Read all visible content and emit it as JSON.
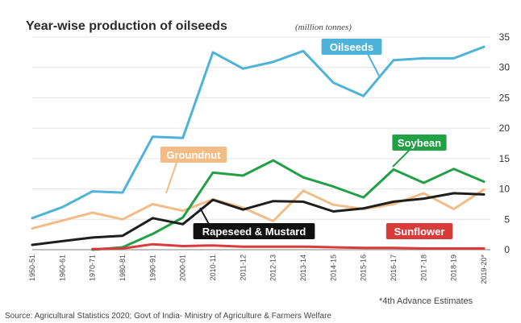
{
  "chart_data": {
    "type": "line",
    "title": "Year-wise production of oilseeds",
    "unit": "(million tonnes)",
    "categories": [
      "1950-51",
      "1960-61",
      "1970-71",
      "1980-81",
      "1990-91",
      "2000-01",
      "2010-11",
      "2011-12",
      "2012-13",
      "2013-14",
      "2014-15",
      "2015-16",
      "2016-17",
      "2017-18",
      "2018-19",
      "2019-20*"
    ],
    "ylim": [
      0,
      35
    ],
    "yticks": [
      0,
      5,
      10,
      15,
      20,
      25,
      30,
      35
    ],
    "grid": true,
    "series": [
      {
        "name": "Oilseeds",
        "color": "#4db3d9",
        "label_fill": "#4db3d9",
        "values": [
          5.2,
          7.0,
          9.6,
          9.4,
          18.6,
          18.4,
          32.5,
          29.8,
          30.9,
          32.7,
          27.5,
          25.3,
          31.2,
          31.5,
          31.5,
          33.4
        ]
      },
      {
        "name": "Groundnut",
        "color": "#f2bc86",
        "label_fill": "#f2bc86",
        "values": [
          3.5,
          4.8,
          6.1,
          5.0,
          7.5,
          6.4,
          8.3,
          6.9,
          4.7,
          9.7,
          7.4,
          6.7,
          7.5,
          9.3,
          6.7,
          9.9
        ]
      },
      {
        "name": "Soybean",
        "color": "#22a045",
        "label_fill": "#22a045",
        "values": [
          null,
          null,
          0.0,
          0.4,
          2.6,
          5.3,
          12.7,
          12.2,
          14.7,
          11.9,
          10.4,
          8.6,
          13.2,
          11.0,
          13.3,
          11.2
        ]
      },
      {
        "name": "Rapeseed & Mustard",
        "color": "#1e1e1e",
        "label_fill": "#111111",
        "values": [
          0.8,
          1.4,
          2.0,
          2.3,
          5.2,
          4.2,
          8.2,
          6.6,
          8.0,
          7.9,
          6.3,
          6.8,
          7.9,
          8.4,
          9.3,
          9.1
        ]
      },
      {
        "name": "Sunflower",
        "color": "#d93b3b",
        "label_fill": "#d93b3b",
        "values": [
          null,
          null,
          0.1,
          0.2,
          0.9,
          0.6,
          0.7,
          0.5,
          0.5,
          0.5,
          0.4,
          0.3,
          0.3,
          0.2,
          0.2,
          0.2
        ]
      }
    ],
    "annotations": {
      "footnote": "*4th Advance Estimates",
      "source": "Source: Agricultural Statistics 2020; Govt of India- Ministry of Agriculture & Farmers Welfare"
    }
  }
}
